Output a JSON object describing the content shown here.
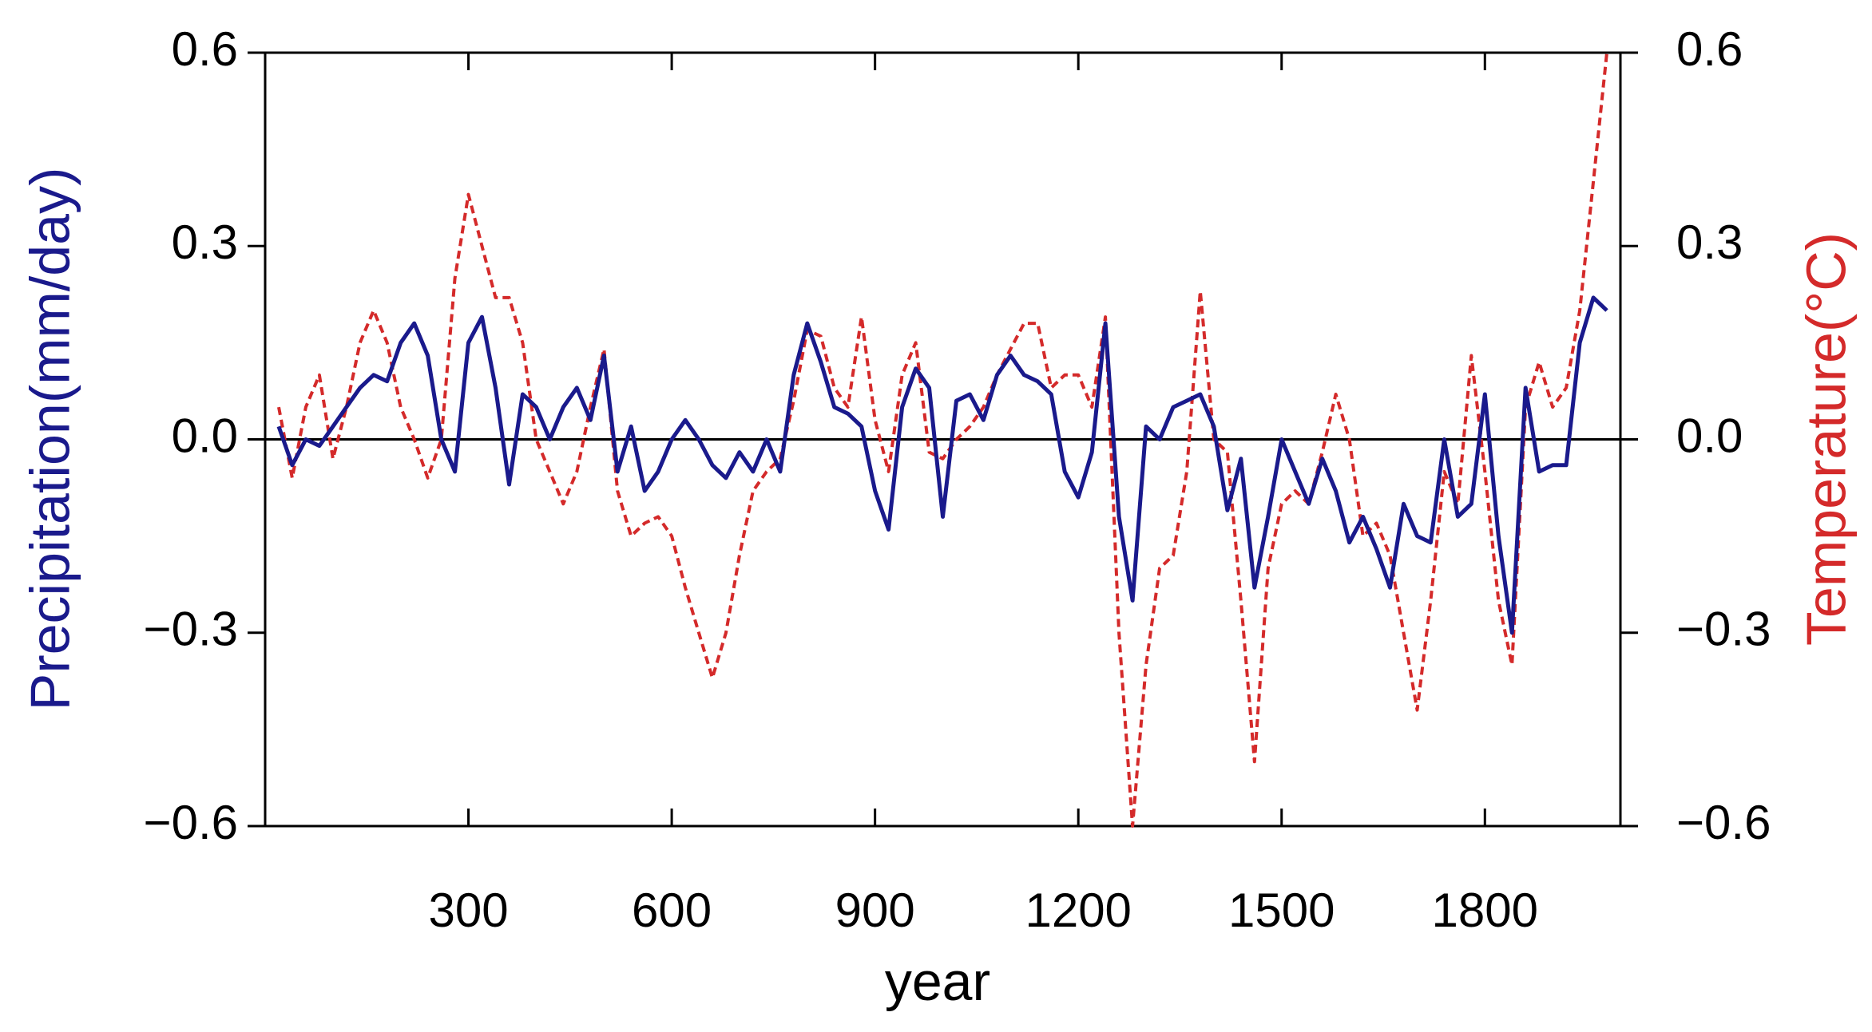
{
  "chart_data": {
    "type": "line",
    "xlabel": "year",
    "ylabel": "Precipitation(mm/day)",
    "y2label": "Temperature(°C)",
    "x": [
      20,
      40,
      60,
      80,
      100,
      120,
      140,
      160,
      180,
      200,
      220,
      240,
      260,
      280,
      300,
      320,
      340,
      360,
      380,
      400,
      420,
      440,
      460,
      480,
      500,
      520,
      540,
      560,
      580,
      600,
      620,
      640,
      660,
      680,
      700,
      720,
      740,
      760,
      780,
      800,
      820,
      840,
      860,
      880,
      900,
      920,
      940,
      960,
      980,
      1000,
      1020,
      1040,
      1060,
      1080,
      1100,
      1120,
      1140,
      1160,
      1180,
      1200,
      1220,
      1240,
      1260,
      1280,
      1300,
      1320,
      1340,
      1360,
      1380,
      1400,
      1420,
      1440,
      1460,
      1480,
      1500,
      1520,
      1540,
      1560,
      1580,
      1600,
      1620,
      1640,
      1660,
      1680,
      1700,
      1720,
      1740,
      1760,
      1780,
      1800,
      1820,
      1840,
      1860,
      1880,
      1900,
      1920,
      1940,
      1960,
      1980
    ],
    "series": [
      {
        "name": "Precipitation",
        "color": "#1a1a8c",
        "dash": false,
        "values": [
          0.02,
          -0.04,
          0.0,
          -0.01,
          0.02,
          0.05,
          0.08,
          0.1,
          0.09,
          0.15,
          0.18,
          0.13,
          0.0,
          -0.05,
          0.15,
          0.19,
          0.08,
          -0.07,
          0.07,
          0.05,
          0.0,
          0.05,
          0.08,
          0.03,
          0.13,
          -0.05,
          0.02,
          -0.08,
          -0.05,
          0.0,
          0.03,
          0.0,
          -0.04,
          -0.06,
          -0.02,
          -0.05,
          0.0,
          -0.05,
          0.1,
          0.18,
          0.12,
          0.05,
          0.04,
          0.02,
          -0.08,
          -0.14,
          0.05,
          0.11,
          0.08,
          -0.12,
          0.06,
          0.07,
          0.03,
          0.1,
          0.13,
          0.1,
          0.09,
          0.07,
          -0.05,
          -0.09,
          -0.02,
          0.18,
          -0.12,
          -0.25,
          0.02,
          0.0,
          0.05,
          0.06,
          0.07,
          0.02,
          -0.11,
          -0.03,
          -0.23,
          -0.12,
          0.0,
          -0.05,
          -0.1,
          -0.03,
          -0.08,
          -0.16,
          -0.12,
          -0.17,
          -0.23,
          -0.1,
          -0.15,
          -0.16,
          0.0,
          -0.12,
          -0.1,
          0.07,
          -0.15,
          -0.3,
          0.08,
          -0.05,
          -0.04,
          -0.04,
          0.15,
          0.22,
          0.2
        ]
      },
      {
        "name": "Temperature",
        "color": "#d42a2a",
        "dash": true,
        "axis": "y2",
        "values": [
          0.05,
          -0.06,
          0.05,
          0.1,
          -0.03,
          0.05,
          0.15,
          0.2,
          0.15,
          0.05,
          0.0,
          -0.06,
          0.0,
          0.25,
          0.38,
          0.3,
          0.22,
          0.22,
          0.15,
          0.0,
          -0.05,
          -0.1,
          -0.05,
          0.05,
          0.14,
          -0.08,
          -0.15,
          -0.13,
          -0.12,
          -0.15,
          -0.23,
          -0.3,
          -0.37,
          -0.3,
          -0.18,
          -0.08,
          -0.05,
          -0.03,
          0.06,
          0.17,
          0.16,
          0.08,
          0.05,
          0.19,
          0.03,
          -0.05,
          0.1,
          0.15,
          -0.02,
          -0.03,
          0.0,
          0.02,
          0.05,
          0.1,
          0.14,
          0.18,
          0.18,
          0.08,
          0.1,
          0.1,
          0.05,
          0.19,
          -0.3,
          -0.6,
          -0.35,
          -0.2,
          -0.18,
          -0.05,
          0.23,
          0.0,
          -0.02,
          -0.25,
          -0.5,
          -0.2,
          -0.1,
          -0.08,
          -0.1,
          -0.02,
          0.07,
          0.0,
          -0.15,
          -0.13,
          -0.18,
          -0.3,
          -0.42,
          -0.25,
          -0.05,
          -0.1,
          0.13,
          -0.05,
          -0.25,
          -0.35,
          0.05,
          0.12,
          0.05,
          0.08,
          0.2,
          0.4,
          0.6
        ]
      }
    ],
    "xlim": [
      0,
      2000
    ],
    "xticks": [
      300,
      600,
      900,
      1200,
      1500,
      1800
    ],
    "ylim": [
      -0.6,
      0.6
    ],
    "yticks": [
      {
        "value": -0.6,
        "label": "−0.6"
      },
      {
        "value": -0.3,
        "label": "−0.3"
      },
      {
        "value": 0,
        "label": "0.0"
      },
      0.3,
      0.6
    ],
    "y2lim": [
      -0.6,
      0.6
    ],
    "y2ticks": [
      {
        "value": -0.6,
        "label": "−0.6"
      },
      {
        "value": -0.3,
        "label": "−0.3"
      },
      {
        "value": 0,
        "label": "0.0"
      },
      0.3,
      0.6
    ]
  }
}
